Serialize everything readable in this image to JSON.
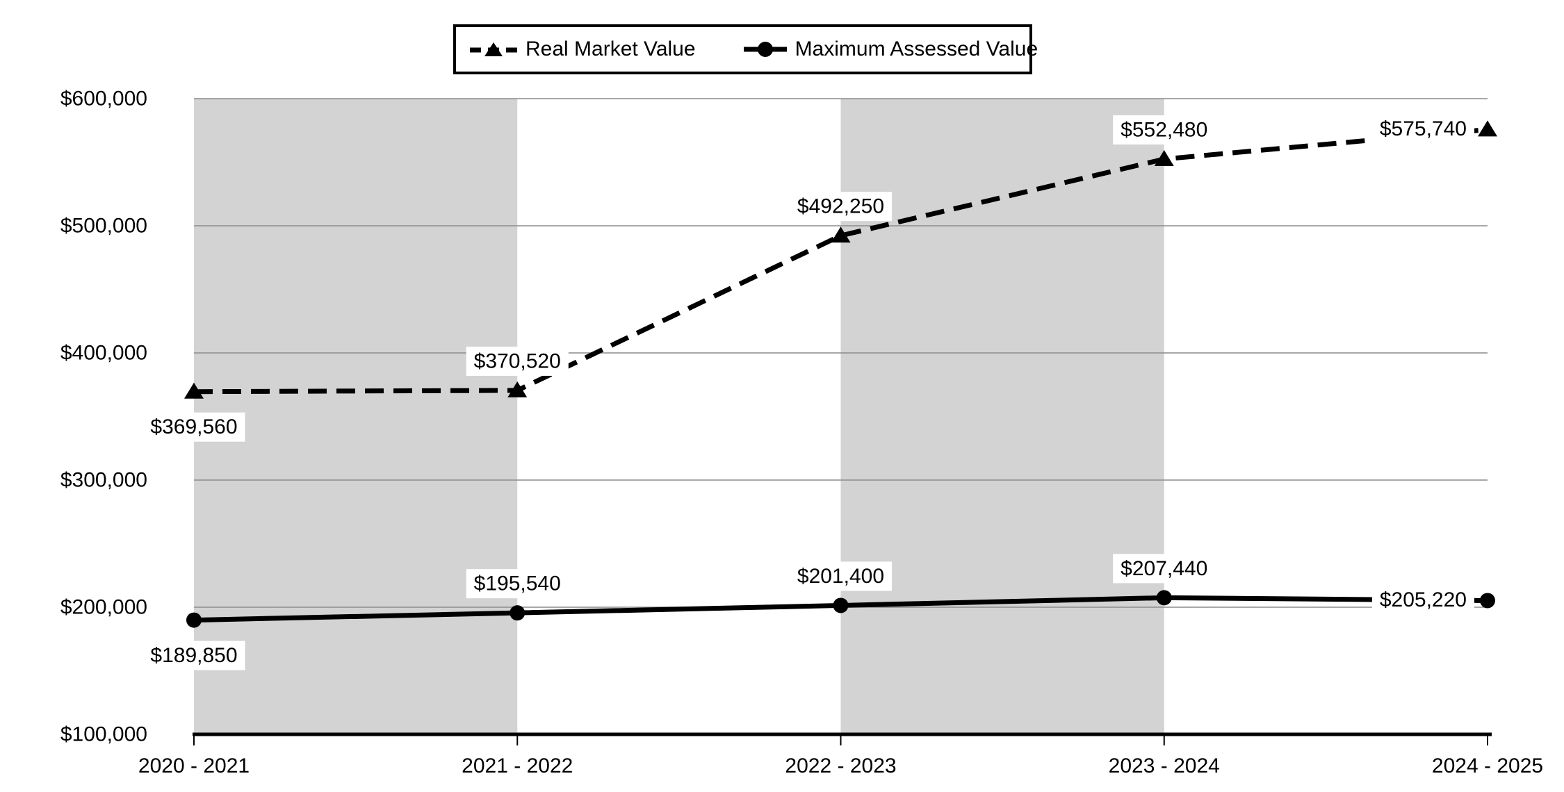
{
  "page": {
    "background": "#ffffff"
  },
  "chart_data": {
    "type": "line",
    "title": "",
    "xlabel": "",
    "ylabel": "",
    "categories": [
      "2020 - 2021",
      "2021 - 2022",
      "2022 - 2023",
      "2023 - 2024",
      "2024 - 2025"
    ],
    "series": [
      {
        "name": "Real Market Value",
        "style": "dashed",
        "marker": "triangle",
        "color": "#000000",
        "values": [
          369560,
          370520,
          492250,
          552480,
          575740
        ],
        "labels": [
          "$369,560",
          "$370,520",
          "$492,250",
          "$552,480",
          "$575,740"
        ],
        "label_pos": [
          "below",
          "above",
          "above",
          "above",
          "left"
        ]
      },
      {
        "name": "Maximum Assessed Value",
        "style": "solid",
        "marker": "circle",
        "color": "#000000",
        "values": [
          189850,
          195540,
          201400,
          207440,
          205220
        ],
        "labels": [
          "$189,850",
          "$195,540",
          "$201,400",
          "$207,440",
          "$205,220"
        ],
        "label_pos": [
          "below",
          "above",
          "above",
          "above",
          "left"
        ]
      }
    ],
    "ylim": [
      100000,
      600000
    ],
    "yticks": [
      {
        "value": 600000,
        "label": "$600,000"
      },
      {
        "value": 500000,
        "label": "$500,000"
      },
      {
        "value": 400000,
        "label": "$400,000"
      },
      {
        "value": 300000,
        "label": "$300,000"
      },
      {
        "value": 200000,
        "label": "$200,000"
      },
      {
        "value": 100000,
        "label": "$100,000"
      }
    ],
    "grid": true,
    "legend_position": "top",
    "shaded_band_pairs": [
      [
        0,
        1
      ],
      [
        2,
        3
      ]
    ],
    "band_color": "#d3d3d3",
    "gridline_color": "#8c8c8c",
    "axis_color": "#000000",
    "label_box_color": "#ffffff",
    "text_color": "#000000"
  }
}
